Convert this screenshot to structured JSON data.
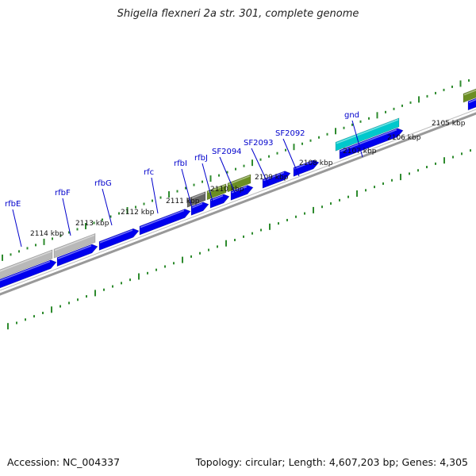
{
  "title": "Shigella flexneri 2a str. 301, complete genome",
  "footer": {
    "accession": "Accession: NC_004337",
    "summary": "Topology: circular; Length: 4,607,203 bp; Genes: 4,305"
  },
  "colors": {
    "cds": "#0000ee",
    "gene_grey": "#b8b8b8",
    "gene_dark": "#666666",
    "gene_olive": "#6b8e23",
    "gene_cyan": "#00c8cc",
    "backbone": "#888888",
    "tick": "#2e8b2e",
    "label": "#0000cc"
  },
  "diagram": {
    "scale_labels": [
      "2114 kbp",
      "2113 kbp",
      "2112 kbp",
      "2111 kbp",
      "2110 kbp",
      "2109 kbp",
      "2108 kbp",
      "2107 kbp",
      "2106 kbp",
      "2105 kbp"
    ],
    "gene_labels": [
      "rfbE",
      "rfbF",
      "rfbG",
      "rfc",
      "rfbI",
      "rfbJ",
      "SF2094",
      "SF2093",
      "SF2092",
      "gnd"
    ]
  }
}
